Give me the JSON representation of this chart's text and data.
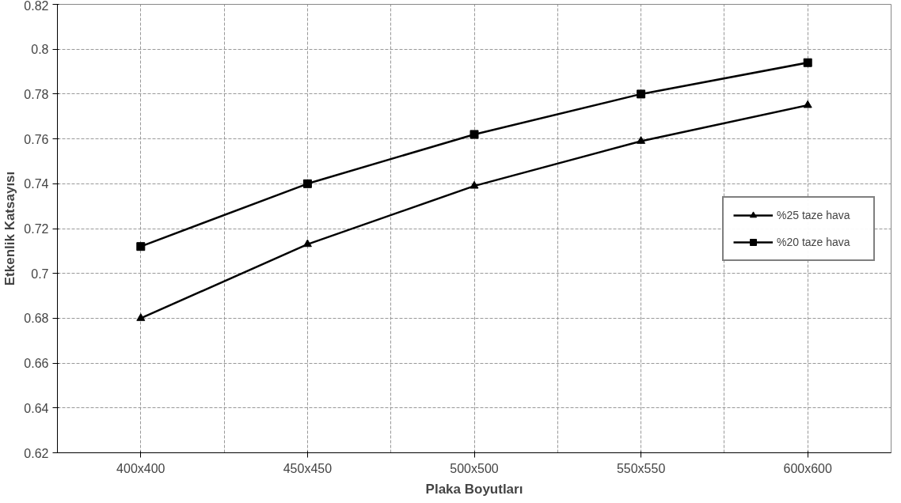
{
  "chart_data": {
    "type": "line",
    "xlabel": "Plaka Boyutları",
    "ylabel": "Etkenlik Katsayısı",
    "categories": [
      "400x400",
      "450x450",
      "500x500",
      "550x550",
      "600x600"
    ],
    "series": [
      {
        "name": "%25 taze hava",
        "color": "#000000",
        "marker": "triangle",
        "values": [
          0.68,
          0.713,
          0.739,
          0.759,
          0.775
        ]
      },
      {
        "name": "%20 taze hava",
        "color": "#000000",
        "marker": "square",
        "values": [
          0.712,
          0.74,
          0.762,
          0.78,
          0.794
        ]
      }
    ],
    "ylim": [
      0.62,
      0.82
    ],
    "yticks": [
      0.62,
      0.64,
      0.66,
      0.68,
      0.7,
      0.72,
      0.74,
      0.76,
      0.78,
      0.8,
      0.82
    ],
    "grid": true,
    "legend": "right",
    "line_style": "solid"
  }
}
